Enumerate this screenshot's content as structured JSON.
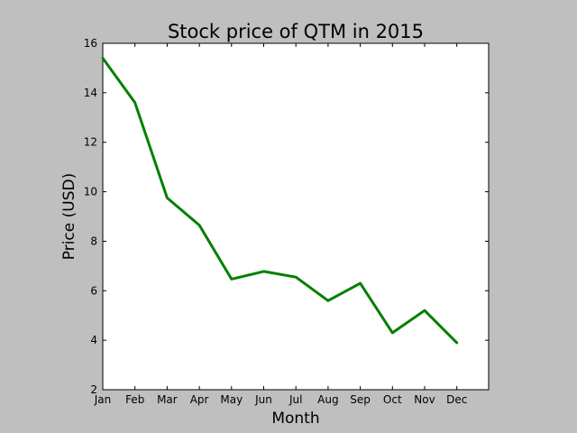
{
  "colors": {
    "figure_background": "#bfbfbf",
    "plot_background": "#ffffff",
    "line": "#008000",
    "axes": "#000000"
  },
  "chart_data": {
    "type": "line",
    "title": "Stock price of QTM in 2015",
    "xlabel": "Month",
    "ylabel": "Price (USD)",
    "categories": [
      "Jan",
      "Feb",
      "Mar",
      "Apr",
      "May",
      "Jun",
      "Jul",
      "Aug",
      "Sep",
      "Oct",
      "Nov",
      "Dec"
    ],
    "series": [
      {
        "values": [
          15.4,
          13.6,
          9.75,
          8.65,
          6.47,
          6.78,
          6.55,
          5.6,
          6.3,
          4.3,
          5.2,
          3.9
        ]
      }
    ],
    "ylim": [
      2,
      16
    ],
    "yticks": [
      2,
      4,
      6,
      8,
      10,
      12,
      14,
      16
    ],
    "grid": false,
    "legend": "none"
  }
}
